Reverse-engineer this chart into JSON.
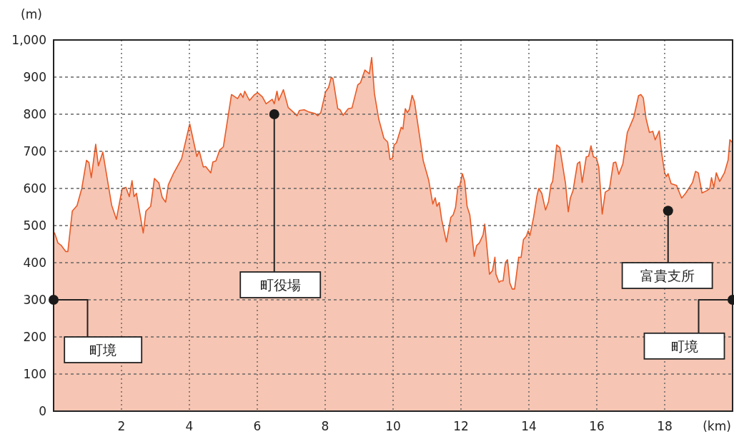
{
  "chart_data": {
    "type": "area",
    "xlabel": "(km)",
    "ylabel": "(m)",
    "xlim": [
      0,
      20
    ],
    "ylim": [
      0,
      1000
    ],
    "xticks": [
      2,
      4,
      6,
      8,
      10,
      12,
      14,
      16,
      18
    ],
    "yticks": [
      0,
      100,
      200,
      300,
      400,
      500,
      600,
      700,
      800,
      900,
      {
        "value": 1000,
        "label": "1,000"
      }
    ],
    "grid": true,
    "line_style": "solid",
    "marker": "none",
    "series": [
      {
        "color": "#e85a26",
        "x": [
          0,
          0.03,
          0.13,
          0.22,
          0.36,
          0.42,
          0.55,
          0.69,
          0.83,
          0.97,
          1.04,
          1.11,
          1.24,
          1.32,
          1.45,
          1.57,
          1.71,
          1.85,
          2.02,
          2.13,
          2.23,
          2.31,
          2.37,
          2.44,
          2.64,
          2.72,
          2.86,
          2.97,
          3.1,
          3.2,
          3.3,
          3.38,
          3.52,
          3.77,
          4.01,
          4.22,
          4.29,
          4.41,
          4.48,
          4.63,
          4.69,
          4.78,
          4.89,
          5.0,
          5.24,
          5.42,
          5.51,
          5.58,
          5.63,
          5.77,
          5.91,
          6.01,
          6.15,
          6.26,
          6.44,
          6.5,
          6.58,
          6.63,
          6.77,
          6.91,
          7.07,
          7.17,
          7.24,
          7.38,
          7.52,
          7.7,
          7.78,
          7.87,
          8.01,
          8.1,
          8.18,
          8.23,
          8.37,
          8.44,
          8.53,
          8.68,
          8.79,
          8.96,
          9.04,
          9.17,
          9.3,
          9.37,
          9.45,
          9.58,
          9.73,
          9.84,
          9.91,
          9.98,
          10.03,
          10.1,
          10.24,
          10.29,
          10.36,
          10.42,
          10.48,
          10.56,
          10.63,
          10.72,
          10.89,
          11.05,
          11.17,
          11.24,
          11.29,
          11.36,
          11.43,
          11.57,
          11.7,
          11.77,
          11.84,
          11.91,
          11.96,
          12.04,
          12.11,
          12.18,
          12.26,
          12.39,
          12.46,
          12.54,
          12.65,
          12.7,
          12.84,
          12.93,
          13.0,
          13.03,
          13.12,
          13.17,
          13.24,
          13.31,
          13.37,
          13.44,
          13.51,
          13.58,
          13.7,
          13.77,
          13.84,
          13.93,
          13.98,
          14.03,
          14.14,
          14.24,
          14.29,
          14.38,
          14.49,
          14.58,
          14.65,
          14.7,
          14.82,
          14.91,
          15.08,
          15.16,
          15.22,
          15.3,
          15.43,
          15.5,
          15.57,
          15.69,
          15.76,
          15.83,
          15.9,
          15.99,
          16.06,
          16.16,
          16.25,
          16.37,
          16.49,
          16.56,
          16.65,
          16.77,
          16.9,
          17.09,
          17.23,
          17.3,
          17.37,
          17.45,
          17.55,
          17.65,
          17.72,
          17.84,
          17.91,
          18.0,
          18.05,
          18.1,
          18.19,
          18.35,
          18.5,
          18.61,
          18.71,
          18.82,
          18.91,
          18.99,
          19.1,
          19.24,
          19.33,
          19.38,
          19.45,
          19.52,
          19.62,
          19.76,
          19.87,
          19.92,
          20.0
        ],
        "values": [
          480,
          480,
          453,
          447,
          430,
          430,
          539,
          554,
          600,
          676,
          670,
          629,
          719,
          661,
          698,
          632,
          555,
          517,
          600,
          603,
          578,
          621,
          578,
          587,
          480,
          539,
          552,
          627,
          615,
          576,
          563,
          610,
          638,
          680,
          774,
          686,
          701,
          658,
          659,
          642,
          671,
          674,
          703,
          712,
          853,
          842,
          856,
          845,
          862,
          837,
          852,
          858,
          847,
          828,
          840,
          828,
          862,
          837,
          866,
          818,
          805,
          796,
          810,
          812,
          806,
          802,
          796,
          804,
          860,
          872,
          900,
          895,
          815,
          812,
          797,
          815,
          817,
          879,
          885,
          919,
          909,
          953,
          856,
          786,
          735,
          725,
          678,
          681,
          717,
          723,
          765,
          760,
          815,
          804,
          813,
          851,
          834,
          779,
          674,
          622,
          558,
          575,
          552,
          562,
          517,
          456,
          522,
          529,
          549,
          605,
          605,
          640,
          619,
          552,
          529,
          417,
          446,
          453,
          475,
          504,
          369,
          379,
          415,
          369,
          347,
          351,
          351,
          401,
          408,
          345,
          329,
          329,
          415,
          414,
          462,
          472,
          486,
          473,
          523,
          581,
          600,
          587,
          542,
          565,
          610,
          619,
          717,
          710,
          613,
          537,
          574,
          594,
          667,
          672,
          616,
          685,
          687,
          715,
          685,
          682,
          658,
          531,
          590,
          597,
          669,
          671,
          638,
          667,
          751,
          792,
          850,
          853,
          844,
          789,
          751,
          754,
          731,
          755,
          696,
          642,
          632,
          640,
          613,
          608,
          574,
          586,
          600,
          616,
          646,
          642,
          588,
          594,
          600,
          629,
          603,
          642,
          619,
          642,
          677,
          731,
          723
        ]
      }
    ],
    "annotations": [
      {
        "text": "町境",
        "x": 0,
        "y": 300
      },
      {
        "text": "町役場",
        "x": 6.5,
        "y": 800
      },
      {
        "text": "富貴支所",
        "x": 18.1,
        "y": 540
      },
      {
        "text": "町境",
        "x": 20,
        "y": 300
      }
    ]
  }
}
